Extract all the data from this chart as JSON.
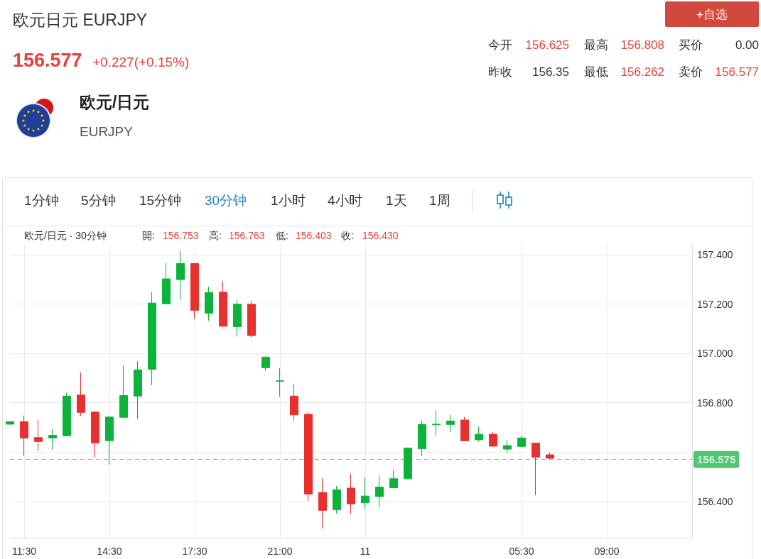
{
  "chart_data": {
    "type": "candlestick",
    "title": "欧元日元 EURJPY",
    "annotations": [
      "156.577",
      "+0.227(+0.15%)",
      "今开",
      "156.625",
      "最高",
      "156.808",
      "买价",
      "0.00",
      "昨收",
      "156.35",
      "最低",
      "156.262",
      "卖价",
      "156.577",
      "+自选",
      "欧元/日元",
      "EURJPY",
      "1分钟",
      "5分钟",
      "15分钟",
      "30分钟",
      "1小时",
      "4小时",
      "1天",
      "1周",
      "欧元/日元 · 30分钟",
      "開:",
      "156.753",
      "高:",
      "156.763",
      "低:",
      "156.403",
      "收:",
      "156.430"
    ],
    "categories": [
      null,
      "11:30",
      null,
      null,
      null,
      null,
      null,
      "14:30",
      null,
      null,
      null,
      null,
      null,
      "17:30",
      null,
      null,
      null,
      null,
      null,
      "21:00",
      null,
      null,
      null,
      null,
      null,
      "11",
      null,
      null,
      null,
      null,
      null,
      null,
      null,
      null,
      null,
      null,
      "05:30",
      null,
      null,
      null,
      null,
      null,
      "09:00",
      null,
      null,
      null,
      null,
      null,
      null
    ],
    "ohlc": [
      [
        156.713,
        156.723,
        156.713,
        156.723
      ],
      [
        156.723,
        156.748,
        156.585,
        156.657
      ],
      [
        156.659,
        156.73,
        156.603,
        156.643
      ],
      [
        156.657,
        156.693,
        156.61,
        156.668
      ],
      [
        156.666,
        156.84,
        156.664,
        156.827
      ],
      [
        156.831,
        156.922,
        156.746,
        156.761
      ],
      [
        156.762,
        156.764,
        156.579,
        156.637
      ],
      [
        156.646,
        156.745,
        156.549,
        156.742
      ],
      [
        156.741,
        156.951,
        156.739,
        156.829
      ],
      [
        156.827,
        156.969,
        156.733,
        156.933
      ],
      [
        156.935,
        157.248,
        156.871,
        157.204
      ],
      [
        157.201,
        157.366,
        157.199,
        157.302
      ],
      [
        157.299,
        157.416,
        157.217,
        157.364
      ],
      [
        157.364,
        157.366,
        157.14,
        157.174
      ],
      [
        157.163,
        157.27,
        157.132,
        157.246
      ],
      [
        157.248,
        157.293,
        157.108,
        157.11
      ],
      [
        157.108,
        157.215,
        157.068,
        157.199
      ],
      [
        157.199,
        157.213,
        157.065,
        157.072
      ],
      [
        156.942,
        156.987,
        156.929,
        156.985
      ],
      [
        156.887,
        156.94,
        156.824,
        156.889
      ],
      [
        156.827,
        156.873,
        156.728,
        156.751
      ],
      [
        156.753,
        156.763,
        156.403,
        156.43
      ],
      [
        156.436,
        156.494,
        156.289,
        156.364
      ],
      [
        156.367,
        156.463,
        156.352,
        156.447
      ],
      [
        156.454,
        156.512,
        156.349,
        156.39
      ],
      [
        156.395,
        156.498,
        156.372,
        156.422
      ],
      [
        156.42,
        156.506,
        156.376,
        156.458
      ],
      [
        156.456,
        156.527,
        156.454,
        156.492
      ],
      [
        156.492,
        156.618,
        156.49,
        156.616
      ],
      [
        156.614,
        156.728,
        156.583,
        156.712
      ],
      [
        156.711,
        156.769,
        156.666,
        156.713
      ],
      [
        156.712,
        156.751,
        156.681,
        156.726
      ],
      [
        156.73,
        156.742,
        156.645,
        156.646
      ],
      [
        156.65,
        156.702,
        156.643,
        156.672
      ],
      [
        156.672,
        156.681,
        156.623,
        156.624
      ],
      [
        156.612,
        156.648,
        156.596,
        156.626
      ],
      [
        156.623,
        156.666,
        156.621,
        156.657
      ],
      [
        156.636,
        156.638,
        156.425,
        156.579
      ],
      [
        156.589,
        156.597,
        156.569,
        156.575
      ],
      null,
      null,
      null,
      null,
      null,
      null,
      null,
      null,
      null,
      null
    ],
    "colors": [
      "#0cb33b",
      "#e8302f",
      "#e8302f",
      "#0cb33b",
      "#0cb33b",
      "#e8302f",
      "#e8302f",
      "#0cb33b",
      "#0cb33b",
      "#0cb33b",
      "#0cb33b",
      "#0cb33b",
      "#0cb33b",
      "#e8302f",
      "#0cb33b",
      "#e8302f",
      "#0cb33b",
      "#e8302f",
      "#0cb33b",
      "#0cb33b",
      "#e8302f",
      "#e8302f",
      "#e8302f",
      "#0cb33b",
      "#e8302f",
      "#0cb33b",
      "#0cb33b",
      "#0cb33b",
      "#0cb33b",
      "#0cb33b",
      "#0cb33b",
      "#0cb33b",
      "#e8302f",
      "#0cb33b",
      "#e8302f",
      "#0cb33b",
      "#0cb33b",
      "#e8302f",
      "#e8302f",
      null,
      null,
      null,
      null,
      null,
      null,
      null,
      null,
      null,
      null
    ],
    "ylim": [
      156.253,
      157.443
    ],
    "yticks": [
      {
        "value": 156.4,
        "label": "156.400"
      },
      {
        "value": 156.6,
        "label": null
      },
      {
        "value": 156.8,
        "label": "156.800"
      },
      {
        "value": 157.0,
        "label": "157.000"
      },
      {
        "value": 157.2,
        "label": "157.200"
      },
      {
        "value": 157.4,
        "label": "157.400"
      }
    ],
    "grid": true,
    "ref_lines": [
      {
        "axis": "y",
        "value": 156.575,
        "label": "156.575",
        "color": "#14b33f",
        "line_style": "dashed"
      }
    ]
  }
}
